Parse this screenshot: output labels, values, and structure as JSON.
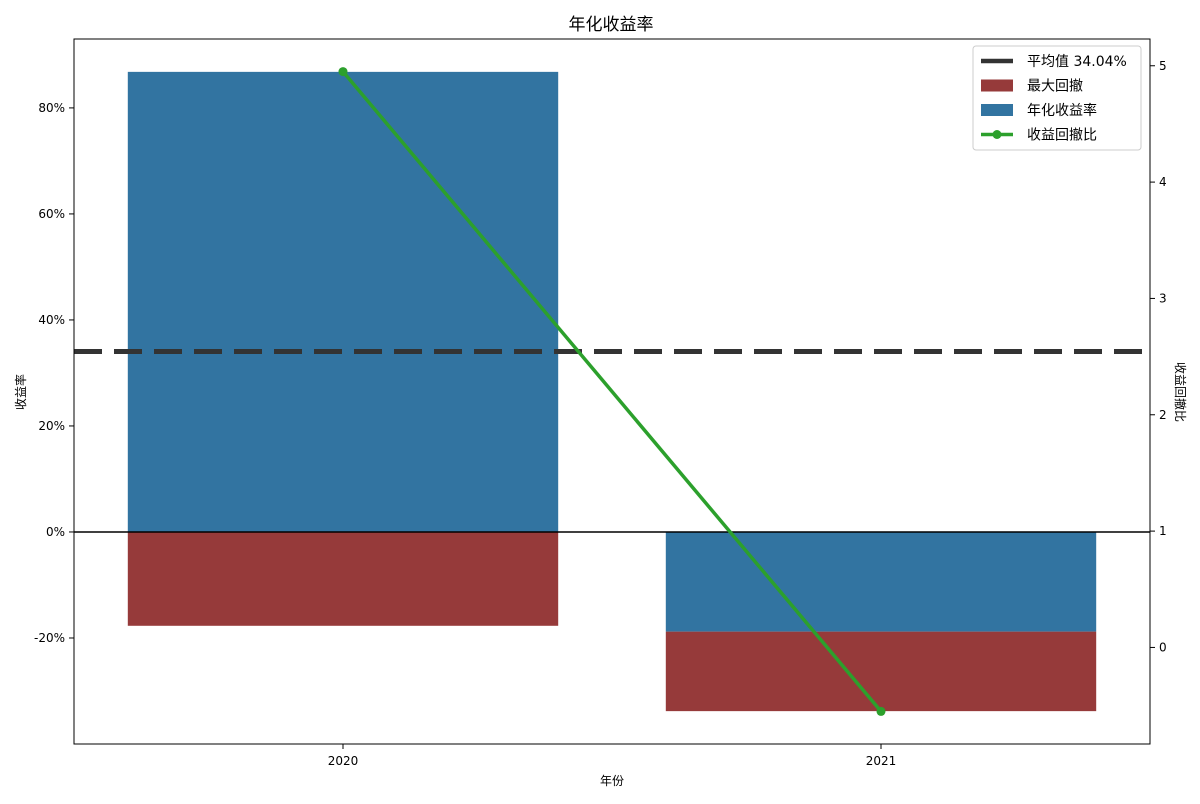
{
  "chart_data": {
    "type": "bar",
    "title": "年化收益率",
    "xlabel": "年份",
    "ylabel": "收益率",
    "ylabel_right": "收益回撤比",
    "categories": [
      "2020",
      "2021"
    ],
    "series": [
      {
        "name": "年化收益率",
        "axis": "left",
        "kind": "bar",
        "values": [
          86.8,
          -18.8
        ],
        "color": "#3274A1"
      },
      {
        "name": "最大回撤",
        "axis": "left",
        "kind": "bar",
        "values": [
          -17.7,
          -15.0
        ],
        "base_from_series": "年化收益率",
        "color": "#963A3A"
      },
      {
        "name": "收益回撤比",
        "axis": "right",
        "kind": "line",
        "values": [
          4.95,
          -0.55
        ],
        "color": "#2CA02C"
      }
    ],
    "reference_lines": [
      {
        "name": "平均值 34.04%",
        "y": 34.04,
        "axis": "left",
        "style": "dashed",
        "color": "#333333"
      },
      {
        "name": "zero",
        "y": 0,
        "axis": "left",
        "style": "solid",
        "color": "#000000"
      }
    ],
    "ylim": [
      -40,
      93
    ],
    "ylim_right": [
      -0.83,
      5.23
    ],
    "yticks": [
      -20,
      0,
      20,
      40,
      60,
      80
    ],
    "ytick_labels": [
      "-20%",
      "0%",
      "20%",
      "40%",
      "60%",
      "80%"
    ],
    "yticks_right": [
      0,
      1,
      2,
      3,
      4,
      5
    ],
    "ytick_labels_right": [
      "0",
      "1",
      "2",
      "3",
      "4",
      "5"
    ],
    "legend": {
      "position": "top-right",
      "entries": [
        "平均值 34.04%",
        "最大回撤",
        "年化收益率",
        "收益回撤比"
      ]
    },
    "grid": false
  }
}
